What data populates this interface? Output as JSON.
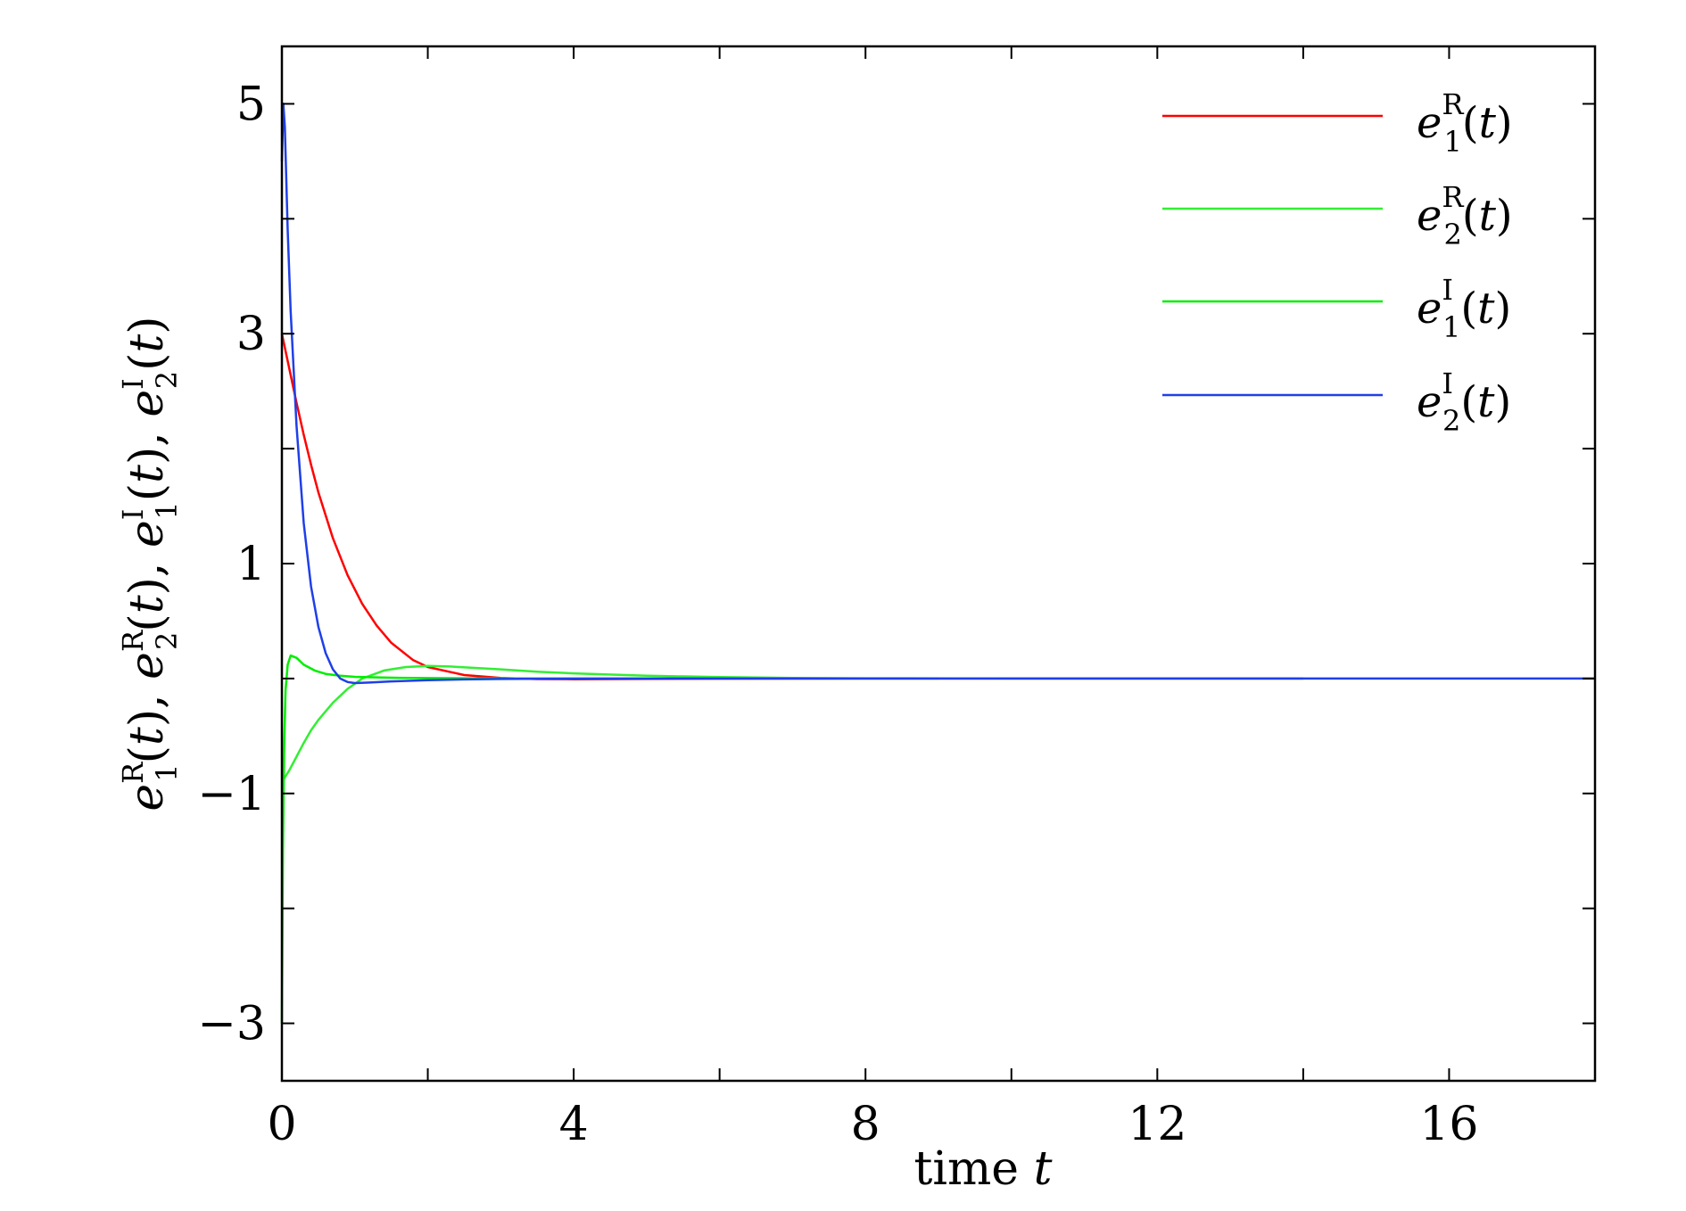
{
  "chart_data": {
    "type": "line",
    "title": "",
    "xlabel": "time t",
    "ylabel": "e_1^R(t), e_2^R(t), e_1^I(t), e_2^I(t)",
    "xlim": [
      0,
      18
    ],
    "ylim": [
      -3.5,
      5.5
    ],
    "xticks": [
      0,
      4,
      8,
      12,
      16
    ],
    "xtick_labels": [
      "0",
      "4",
      "8",
      "12",
      "16"
    ],
    "xminor": [
      2,
      6,
      10,
      14
    ],
    "yticks": [
      -3,
      -1,
      1,
      3,
      5
    ],
    "ytick_labels": [
      "−3",
      "−1",
      "1",
      "3",
      "5"
    ],
    "yminor": [
      -2,
      0,
      2,
      4
    ],
    "grid": false,
    "legend_position": "top-right",
    "series": [
      {
        "name": "e_1^R(t)",
        "legend": {
          "base": "e",
          "sub": "1",
          "sup": "R",
          "arg": "(t)"
        },
        "color": "#ff0000",
        "x": [
          0,
          0.1,
          0.2,
          0.3,
          0.4,
          0.5,
          0.7,
          0.9,
          1.1,
          1.3,
          1.5,
          1.8,
          2.0,
          2.5,
          3.0,
          3.5,
          4.0,
          5.0,
          6.0,
          8.0,
          12.0,
          14.0
        ],
        "y": [
          3.0,
          2.7,
          2.4,
          2.12,
          1.86,
          1.62,
          1.22,
          0.9,
          0.65,
          0.46,
          0.31,
          0.16,
          0.1,
          0.03,
          0.005,
          -0.005,
          -0.006,
          -0.004,
          -0.002,
          0,
          0,
          0
        ]
      },
      {
        "name": "e_2^R(t)",
        "legend": {
          "base": "e",
          "sub": "2",
          "sup": "R",
          "arg": "(t)"
        },
        "color": "#33ee33",
        "x": [
          0,
          0.1,
          0.2,
          0.3,
          0.4,
          0.5,
          0.7,
          0.9,
          1.1,
          1.4,
          1.7,
          2.0,
          2.3,
          2.7,
          3.0,
          3.5,
          4.0,
          5.0,
          6.0,
          7.0,
          8.0,
          10.0,
          14.0
        ],
        "y": [
          -0.9,
          -0.8,
          -0.68,
          -0.56,
          -0.45,
          -0.36,
          -0.21,
          -0.09,
          0.0,
          0.07,
          0.1,
          0.11,
          0.105,
          0.09,
          0.08,
          0.06,
          0.045,
          0.025,
          0.012,
          0.005,
          0.002,
          0.0,
          0.0
        ]
      },
      {
        "name": "e_1^I(t)",
        "legend": {
          "base": "e",
          "sub": "1",
          "sup": "I",
          "arg": "(t)"
        },
        "color": "#00ee00",
        "x": [
          0,
          0.015,
          0.03,
          0.05,
          0.08,
          0.12,
          0.2,
          0.3,
          0.45,
          0.6,
          0.8,
          1.0,
          1.3,
          1.6,
          2.0,
          2.5,
          3.0,
          4.0,
          5.0,
          7.0,
          9.0
        ],
        "y": [
          -3.0,
          -1.5,
          -0.6,
          -0.1,
          0.12,
          0.2,
          0.18,
          0.12,
          0.07,
          0.04,
          0.025,
          0.015,
          0.01,
          0.006,
          0.004,
          0.002,
          0.001,
          0.0,
          0.0,
          0.0,
          0.0
        ]
      },
      {
        "name": "e_2^I(t)",
        "legend": {
          "base": "e",
          "sub": "2",
          "sup": "I",
          "arg": "(t)"
        },
        "color": "#1f3fe8",
        "x": [
          0,
          0.02,
          0.04,
          0.08,
          0.12,
          0.2,
          0.3,
          0.4,
          0.5,
          0.6,
          0.7,
          0.8,
          0.9,
          1.0,
          1.2,
          1.5,
          2.0,
          2.5,
          3.0,
          4.0,
          6.0,
          10.0,
          18.0
        ],
        "y": [
          4.5,
          5.0,
          4.8,
          3.9,
          3.2,
          2.2,
          1.35,
          0.8,
          0.45,
          0.22,
          0.08,
          0.0,
          -0.03,
          -0.04,
          -0.035,
          -0.025,
          -0.015,
          -0.008,
          -0.004,
          -0.001,
          0,
          0,
          0
        ]
      }
    ]
  }
}
